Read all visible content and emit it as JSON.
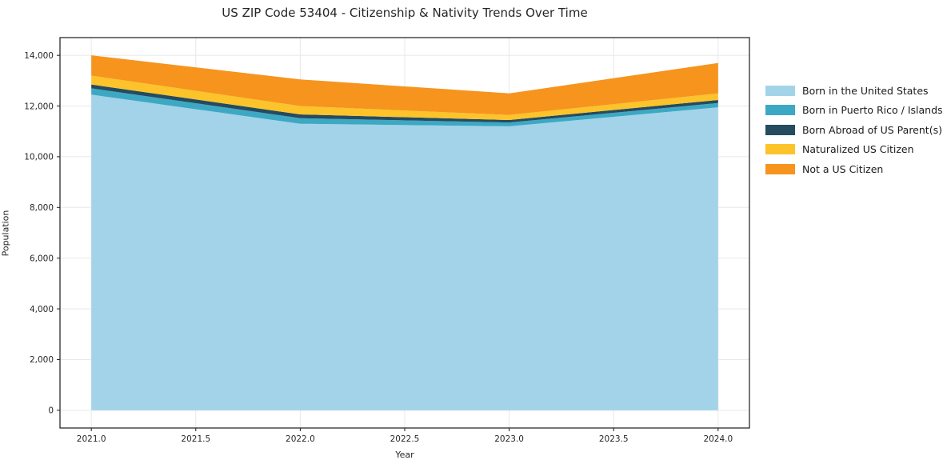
{
  "chart_data": {
    "type": "area",
    "stacked": true,
    "title": "US ZIP Code 53404 - Citizenship & Nativity Trends Over Time",
    "xlabel": "Year",
    "ylabel": "Population",
    "x": [
      2021,
      2022,
      2023,
      2024
    ],
    "series": [
      {
        "name": "Born in the United States",
        "color": "#a3d3e8",
        "values": [
          12450,
          11300,
          11200,
          11950
        ]
      },
      {
        "name": "Born in Puerto Rico / Islands",
        "color": "#3da8c4",
        "values": [
          250,
          220,
          150,
          170
        ]
      },
      {
        "name": "Born Abroad of US Parent(s)",
        "color": "#254b5e",
        "values": [
          150,
          150,
          100,
          120
        ]
      },
      {
        "name": "Naturalized US Citizen",
        "color": "#fcc32b",
        "values": [
          350,
          330,
          200,
          260
        ]
      },
      {
        "name": "Not a US Citizen",
        "color": "#f6941e",
        "values": [
          800,
          1050,
          850,
          1200
        ]
      }
    ],
    "xlim": [
      2020.85,
      2024.15
    ],
    "ylim": [
      -700,
      14700
    ],
    "xticks": {
      "values": [
        2021.0,
        2021.5,
        2022.0,
        2022.5,
        2023.0,
        2023.5,
        2024.0
      ],
      "labels": [
        "2021.0",
        "2021.5",
        "2022.0",
        "2022.5",
        "2023.0",
        "2023.5",
        "2024.0"
      ]
    },
    "yticks": {
      "values": [
        0,
        2000,
        4000,
        6000,
        8000,
        10000,
        12000,
        14000
      ],
      "labels": [
        "0",
        "2,000",
        "4,000",
        "6,000",
        "8,000",
        "10,000",
        "12,000",
        "14,000"
      ]
    },
    "grid": true,
    "legend_position": "right",
    "colors": {
      "background": "#ffffff",
      "grid": "#e8e8e8",
      "spine": "#1a1a1a",
      "text": "#262626"
    }
  }
}
